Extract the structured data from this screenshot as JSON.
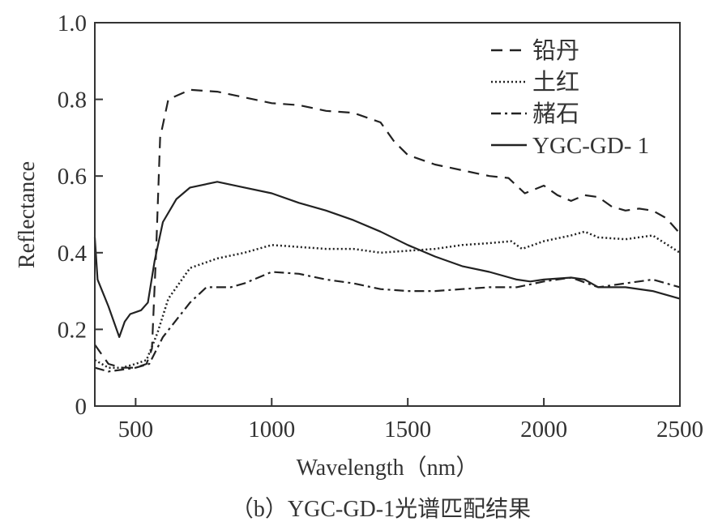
{
  "chart_data": {
    "type": "line",
    "title": "",
    "caption": "（b）YGC-GD-1光谱匹配结果",
    "xlabel": "Wavelength（nm）",
    "ylabel": "Reflectance",
    "xlim": [
      350,
      2500
    ],
    "ylim": [
      0,
      1.0
    ],
    "xticks": [
      500,
      1000,
      1500,
      2000,
      2500
    ],
    "yticks": [
      0,
      0.2,
      0.4,
      0.6,
      0.8,
      1.0
    ],
    "ytick_labels": [
      "0",
      "0.2",
      "0.4",
      "0.6",
      "0.8",
      "1.0"
    ],
    "grid": false,
    "legend_position": "top-right",
    "series": [
      {
        "name": "铅丹",
        "style": "dashed",
        "color": "#222222",
        "x": [
          350,
          400,
          450,
          500,
          540,
          560,
          575,
          590,
          620,
          700,
          800,
          900,
          1000,
          1100,
          1200,
          1300,
          1400,
          1450,
          1500,
          1600,
          1700,
          1800,
          1870,
          1930,
          2000,
          2050,
          2100,
          2150,
          2200,
          2250,
          2300,
          2350,
          2400,
          2450,
          2500
        ],
        "y": [
          0.16,
          0.11,
          0.1,
          0.1,
          0.11,
          0.15,
          0.4,
          0.7,
          0.8,
          0.825,
          0.82,
          0.805,
          0.79,
          0.785,
          0.77,
          0.765,
          0.74,
          0.69,
          0.655,
          0.63,
          0.615,
          0.6,
          0.595,
          0.555,
          0.575,
          0.55,
          0.535,
          0.55,
          0.545,
          0.52,
          0.51,
          0.515,
          0.51,
          0.49,
          0.45
        ]
      },
      {
        "name": "土红",
        "style": "dotted",
        "color": "#222222",
        "x": [
          350,
          400,
          450,
          500,
          540,
          580,
          620,
          700,
          800,
          900,
          1000,
          1100,
          1200,
          1300,
          1400,
          1500,
          1600,
          1700,
          1800,
          1880,
          1920,
          2000,
          2100,
          2150,
          2200,
          2300,
          2400,
          2500
        ],
        "y": [
          0.12,
          0.1,
          0.1,
          0.11,
          0.12,
          0.19,
          0.28,
          0.36,
          0.385,
          0.4,
          0.42,
          0.415,
          0.41,
          0.41,
          0.4,
          0.405,
          0.41,
          0.42,
          0.425,
          0.43,
          0.41,
          0.43,
          0.445,
          0.455,
          0.44,
          0.435,
          0.445,
          0.4
        ]
      },
      {
        "name": "赭石",
        "style": "dashdot",
        "color": "#222222",
        "x": [
          350,
          400,
          450,
          500,
          550,
          600,
          700,
          760,
          850,
          900,
          1000,
          1100,
          1200,
          1300,
          1400,
          1500,
          1600,
          1700,
          1800,
          1900,
          2000,
          2100,
          2200,
          2300,
          2400,
          2500
        ],
        "y": [
          0.1,
          0.09,
          0.095,
          0.1,
          0.11,
          0.18,
          0.27,
          0.31,
          0.31,
          0.32,
          0.35,
          0.345,
          0.33,
          0.32,
          0.305,
          0.3,
          0.3,
          0.305,
          0.31,
          0.31,
          0.325,
          0.335,
          0.31,
          0.32,
          0.33,
          0.31
        ]
      },
      {
        "name": "YGC-GD- 1",
        "style": "solid",
        "color": "#222222",
        "x": [
          350,
          360,
          400,
          440,
          460,
          480,
          520,
          545,
          570,
          600,
          650,
          700,
          800,
          900,
          1000,
          1100,
          1200,
          1300,
          1400,
          1500,
          1600,
          1700,
          1800,
          1900,
          1950,
          2000,
          2100,
          2150,
          2200,
          2300,
          2400,
          2500
        ],
        "y": [
          0.44,
          0.33,
          0.26,
          0.18,
          0.22,
          0.24,
          0.25,
          0.27,
          0.38,
          0.48,
          0.54,
          0.57,
          0.585,
          0.57,
          0.555,
          0.53,
          0.51,
          0.485,
          0.455,
          0.42,
          0.39,
          0.365,
          0.35,
          0.33,
          0.325,
          0.33,
          0.335,
          0.33,
          0.31,
          0.31,
          0.3,
          0.28
        ]
      }
    ]
  }
}
